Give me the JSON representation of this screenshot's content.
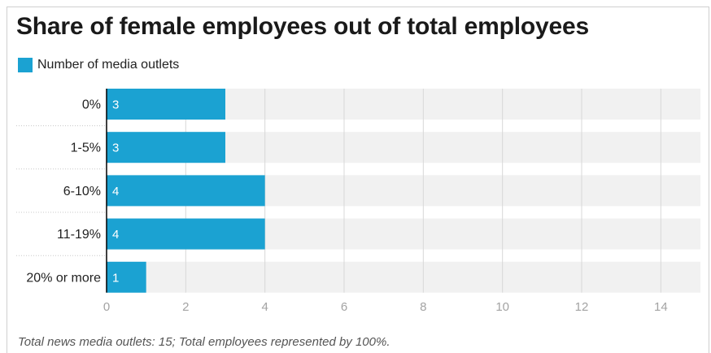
{
  "chart_data": {
    "type": "bar",
    "orientation": "horizontal",
    "title": "Share of female employees out of total employees",
    "categories": [
      "0%",
      "1-5%",
      "6-10%",
      "11-19%",
      "20% or more"
    ],
    "series": [
      {
        "name": "Number of media outlets",
        "values": [
          3,
          3,
          4,
          4,
          1
        ]
      }
    ],
    "data_labels": [
      "3",
      "3",
      "4",
      "4",
      "1"
    ],
    "xlim": [
      0,
      15
    ],
    "x_ticks": [
      "0",
      "2",
      "4",
      "6",
      "8",
      "10",
      "12",
      "14"
    ],
    "grid": true,
    "legend_position": "top-left",
    "footnote": "Total news media outlets: 15; Total employees represented by 100%."
  },
  "colors": {
    "bar": "#1ba2d2",
    "track": "#f1f1f1",
    "grid": "#d8d8d8",
    "axis": "#000000",
    "tick_label": "#a3a3a3",
    "category_label": "#222222",
    "data_label": "#ffffff",
    "separator": "#c8c8c8"
  }
}
